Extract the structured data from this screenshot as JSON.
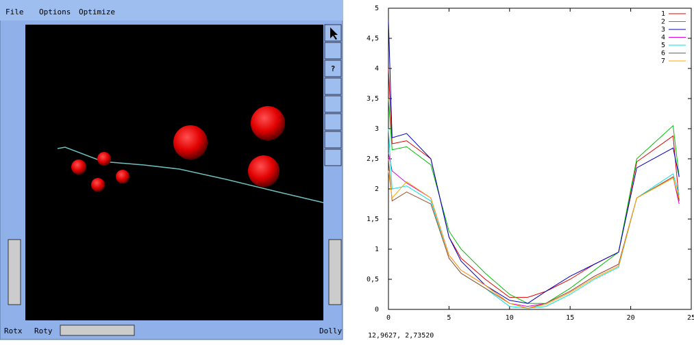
{
  "menu": {
    "items": [
      "File",
      "Options",
      "Optimize"
    ]
  },
  "toolbar": {
    "help": "?"
  },
  "controls": {
    "rotx": "Rotx",
    "roty": "Roty",
    "dolly": "Dolly"
  },
  "status": {
    "coordinates": "12,9627,  2,73520"
  },
  "chart_data": {
    "type": "line",
    "x": [
      0,
      0.3,
      1.5,
      3.5,
      5,
      6,
      8,
      10,
      11.5,
      13,
      15,
      17,
      19,
      20.5,
      23.5,
      24
    ],
    "xlim": [
      0,
      25
    ],
    "xticks": [
      0,
      5,
      10,
      15,
      20,
      25
    ],
    "ylim": [
      0,
      5
    ],
    "yticks": [
      0,
      {
        "value": 0.5,
        "label": "0,5"
      },
      1,
      {
        "value": 1.5,
        "label": "1,5"
      },
      2,
      {
        "value": 2.5,
        "label": "2,5"
      },
      3,
      {
        "value": 3.5,
        "label": "3,5"
      },
      4,
      {
        "value": 4.5,
        "label": "4,5"
      },
      5
    ],
    "legend": "upper right",
    "series": [
      {
        "name": "1",
        "color": "#e00000",
        "values": [
          4.0,
          2.75,
          2.8,
          2.5,
          1.2,
          0.85,
          0.5,
          0.2,
          0.2,
          0.3,
          0.5,
          0.75,
          0.95,
          2.45,
          2.88,
          1.8
        ]
      },
      {
        "name": "2",
        "color": "#00c000",
        "values": [
          3.5,
          2.65,
          2.7,
          2.4,
          1.3,
          1.0,
          0.6,
          0.25,
          0.1,
          0.1,
          0.35,
          0.65,
          0.95,
          2.5,
          3.05,
          2.2
        ]
      },
      {
        "name": "3",
        "color": "#0000c0",
        "values": [
          4.8,
          2.85,
          2.92,
          2.5,
          1.2,
          0.8,
          0.4,
          0.15,
          0.1,
          0.3,
          0.55,
          0.75,
          0.95,
          2.35,
          2.68,
          2.2
        ]
      },
      {
        "name": "4",
        "color": "#e000e0",
        "values": [
          2.6,
          2.3,
          2.1,
          1.85,
          0.9,
          0.65,
          0.4,
          0.1,
          0.05,
          0.1,
          0.3,
          0.55,
          0.75,
          1.85,
          2.2,
          1.75
        ]
      },
      {
        "name": "5",
        "color": "#00e0e0",
        "values": [
          3.0,
          2.0,
          2.05,
          1.8,
          0.85,
          0.6,
          0.35,
          0.05,
          0.02,
          0.05,
          0.25,
          0.5,
          0.7,
          1.85,
          2.25,
          1.9
        ]
      },
      {
        "name": "6",
        "color": "#a0522d",
        "values": [
          2.5,
          1.8,
          1.95,
          1.75,
          0.85,
          0.6,
          0.35,
          0.1,
          0.02,
          0.1,
          0.3,
          0.55,
          0.75,
          1.85,
          2.2,
          1.8
        ]
      },
      {
        "name": "7",
        "color": "#ffa500",
        "values": [
          2.3,
          1.85,
          2.12,
          1.85,
          0.9,
          0.65,
          0.4,
          0.1,
          0.02,
          0.08,
          0.28,
          0.52,
          0.72,
          1.85,
          2.18,
          1.85
        ]
      }
    ]
  }
}
